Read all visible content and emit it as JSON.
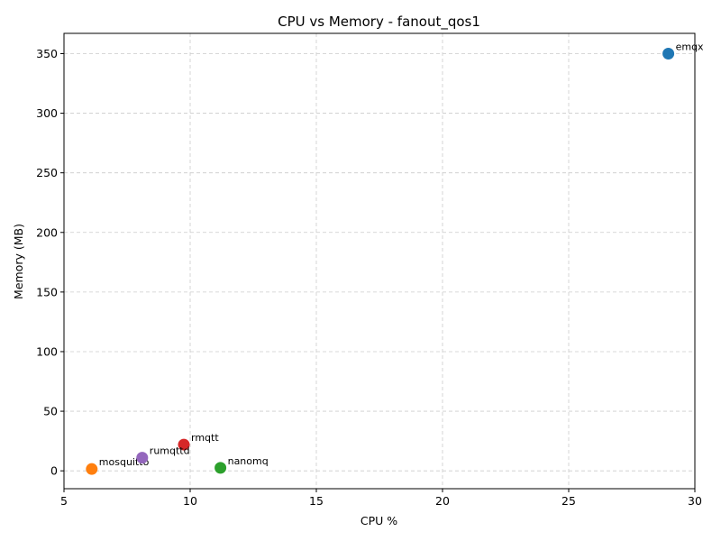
{
  "chart_data": {
    "type": "scatter",
    "title": "CPU vs Memory - fanout_qos1",
    "xlabel": "CPU %",
    "ylabel": "Memory (MB)",
    "xlim": [
      5,
      30
    ],
    "ylim": [
      -15,
      367
    ],
    "xticks": [
      5,
      10,
      15,
      20,
      25,
      30
    ],
    "yticks": [
      0,
      50,
      100,
      150,
      200,
      250,
      300,
      350
    ],
    "grid": true,
    "points": [
      {
        "label": "emqx",
        "x": 28.95,
        "y": 350,
        "color": "#1f77b4"
      },
      {
        "label": "mosquitto",
        "x": 6.1,
        "y": 1.5,
        "color": "#ff7f0e"
      },
      {
        "label": "nanomq",
        "x": 11.2,
        "y": 2.5,
        "color": "#2ca02c"
      },
      {
        "label": "rmqtt",
        "x": 9.75,
        "y": 22,
        "color": "#d62728"
      },
      {
        "label": "rumqttd",
        "x": 8.1,
        "y": 11,
        "color": "#9467bd"
      }
    ]
  }
}
